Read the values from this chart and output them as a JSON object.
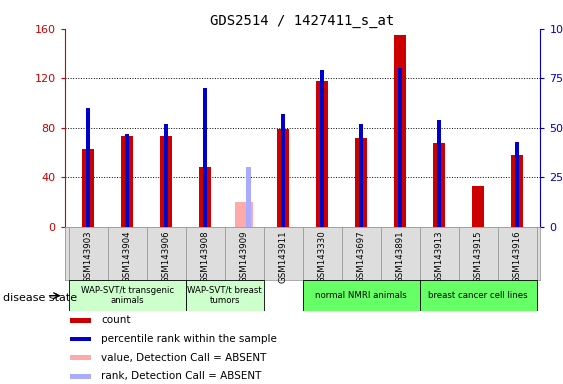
{
  "title": "GDS2514 / 1427411_s_at",
  "samples": [
    "GSM143903",
    "GSM143904",
    "GSM143906",
    "GSM143908",
    "GSM143909",
    "GSM143911",
    "GSM143330",
    "GSM143697",
    "GSM143891",
    "GSM143913",
    "GSM143915",
    "GSM143916"
  ],
  "count": [
    63,
    73,
    73,
    48,
    0,
    79,
    118,
    72,
    155,
    68,
    33,
    58
  ],
  "percentile_rank": [
    60,
    47,
    52,
    70,
    0,
    57,
    79,
    52,
    80,
    54,
    0,
    43
  ],
  "absent_value": [
    0,
    0,
    0,
    0,
    20,
    0,
    0,
    0,
    0,
    0,
    0,
    0
  ],
  "absent_rank": [
    0,
    0,
    0,
    0,
    30,
    0,
    0,
    0,
    0,
    0,
    0,
    0
  ],
  "is_absent": [
    false,
    false,
    false,
    false,
    true,
    false,
    false,
    false,
    false,
    false,
    false,
    false
  ],
  "ylim_left": [
    0,
    160
  ],
  "ylim_right": [
    0,
    100
  ],
  "yticks_left": [
    0,
    40,
    80,
    120,
    160
  ],
  "yticks_right": [
    0,
    25,
    50,
    75,
    100
  ],
  "ylabel_left_color": "#cc0000",
  "ylabel_right_color": "#0000cc",
  "count_color": "#cc0000",
  "rank_color": "#0000cc",
  "absent_value_color": "#ffaaaa",
  "absent_rank_color": "#aaaaff",
  "disease_state_label": "disease state",
  "groups": [
    {
      "label": "WAP-SVT/t transgenic\nanimals",
      "indices": [
        0,
        1,
        2
      ],
      "color": "#ccffcc"
    },
    {
      "label": "WAP-SVT/t breast\ntumors",
      "indices": [
        3,
        4
      ],
      "color": "#ccffcc"
    },
    {
      "label": "normal NMRI animals",
      "indices": [
        6,
        7,
        8
      ],
      "color": "#66ff66"
    },
    {
      "label": "breast cancer cell lines",
      "indices": [
        9,
        10,
        11
      ],
      "color": "#66ff66"
    }
  ],
  "legend_items": [
    {
      "label": "count",
      "color": "#cc0000"
    },
    {
      "label": "percentile rank within the sample",
      "color": "#0000cc"
    },
    {
      "label": "value, Detection Call = ABSENT",
      "color": "#ffaaaa"
    },
    {
      "label": "rank, Detection Call = ABSENT",
      "color": "#aaaaff"
    }
  ]
}
